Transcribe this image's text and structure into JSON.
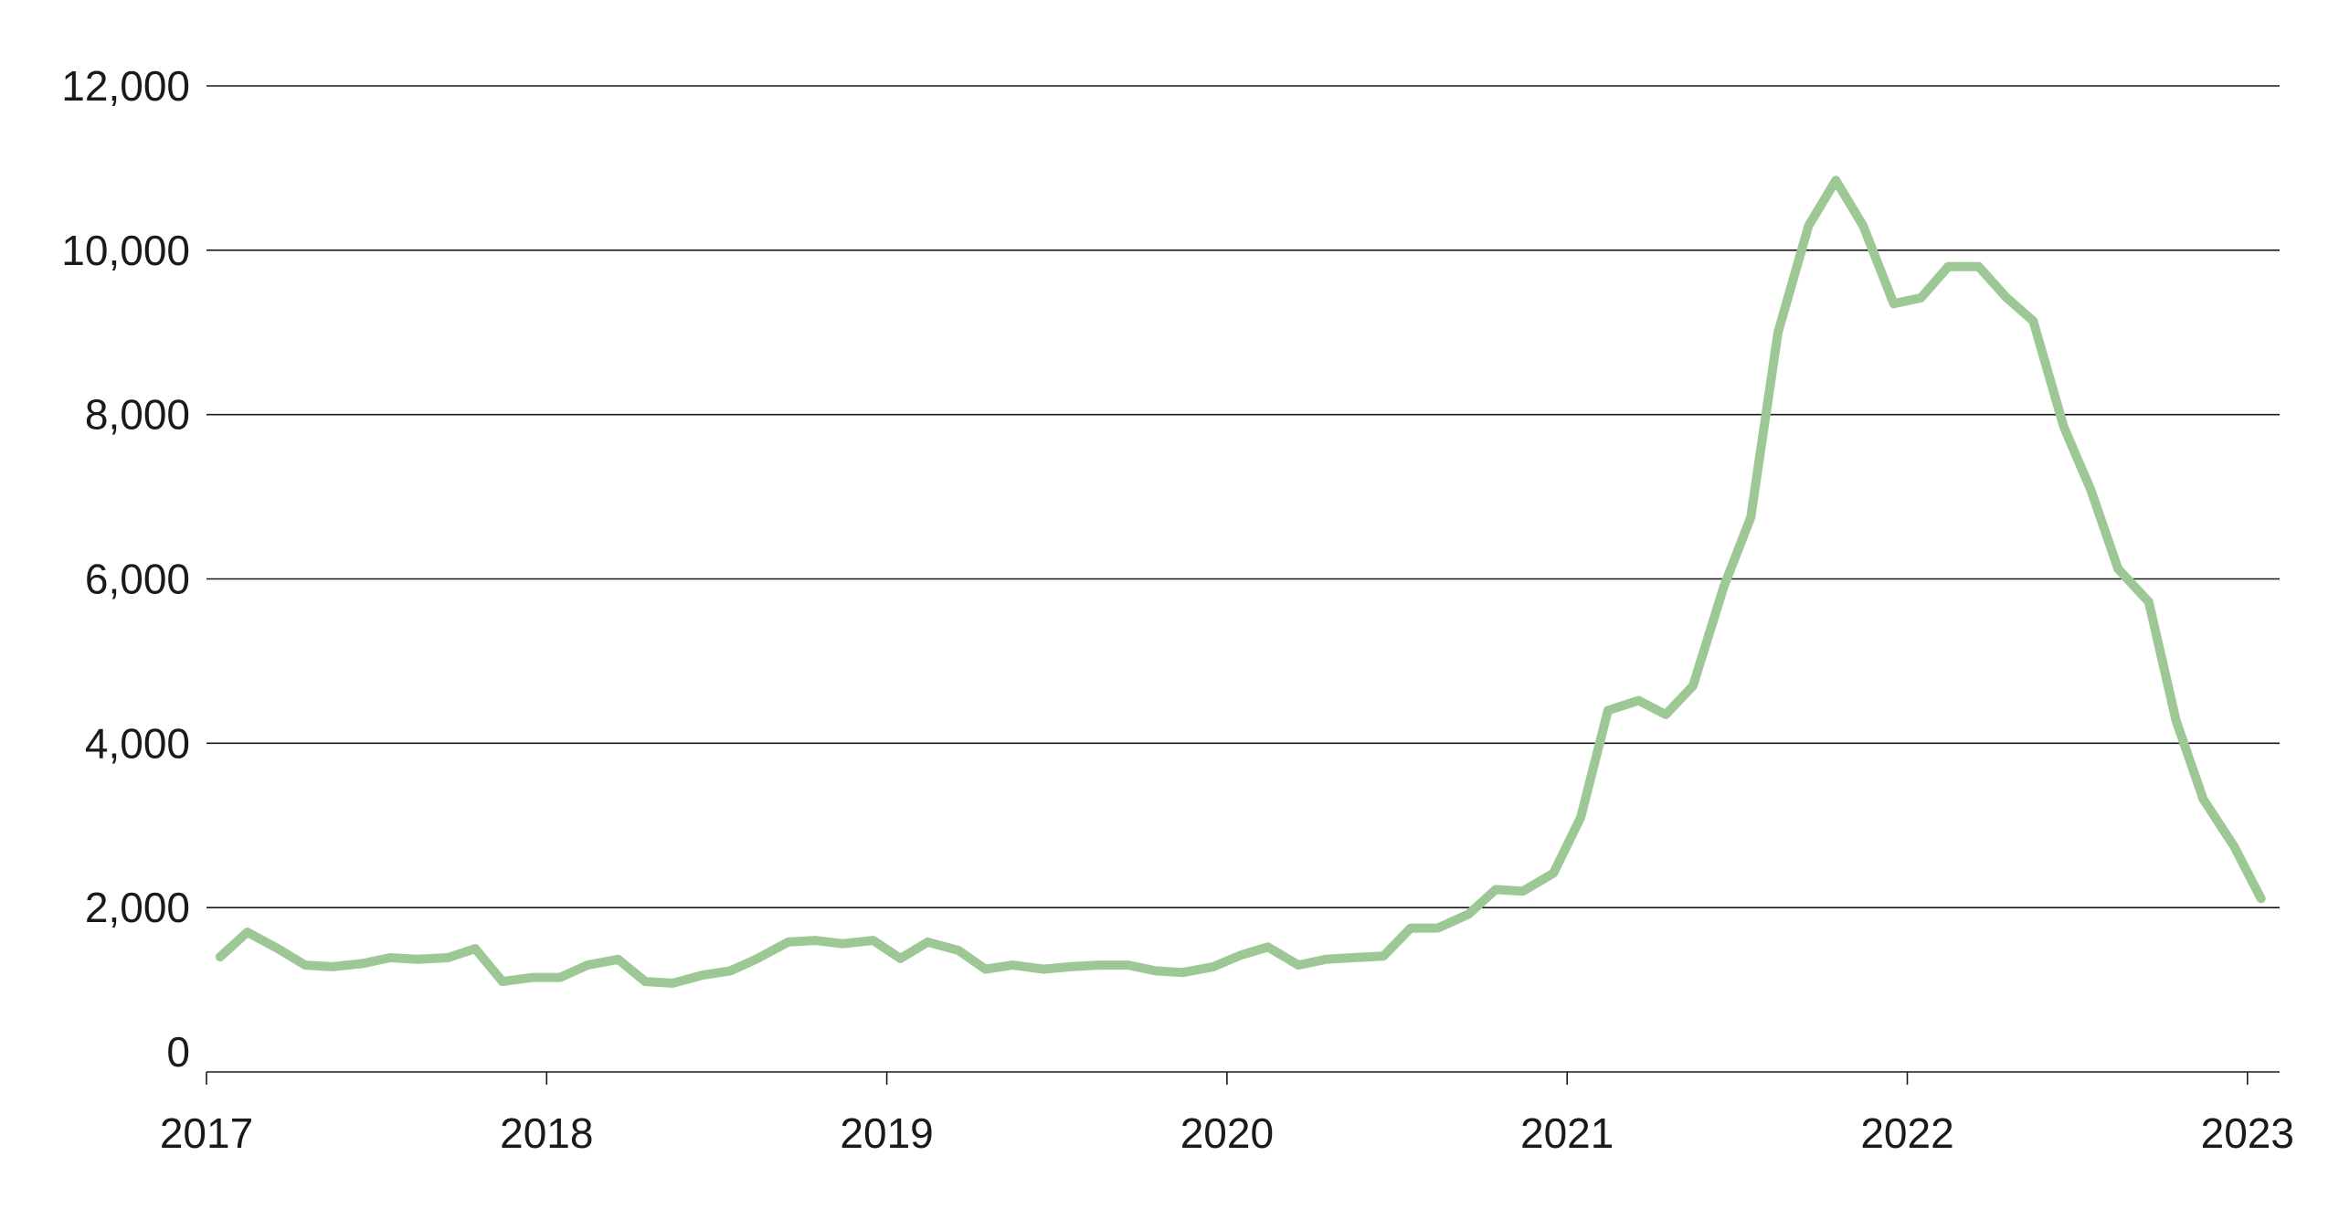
{
  "colors": {
    "series": "#9dc896",
    "grid": "#1a1a1a",
    "text": "#1a1a1a"
  },
  "chart_data": {
    "type": "line",
    "title": "",
    "xlabel": "",
    "ylabel": "",
    "grid": true,
    "legend": "none",
    "ylim": [
      0,
      12000
    ],
    "xlim": [
      2017.0,
      2023.0
    ],
    "y_ticks": [
      0,
      2000,
      4000,
      6000,
      8000,
      10000,
      12000
    ],
    "y_tick_labels": [
      "0",
      "2,000",
      "4,000",
      "6,000",
      "8,000",
      "10,000",
      "12,000"
    ],
    "x_ticks": [
      2017,
      2018,
      2019,
      2020,
      2021,
      2022,
      2023
    ],
    "x_tick_labels": [
      "2017",
      "2018",
      "2019",
      "2020",
      "2021",
      "2022",
      "2023"
    ],
    "series": [
      {
        "x": [
          2017.04,
          2017.12,
          2017.21,
          2017.29,
          2017.37,
          2017.46,
          2017.54,
          2017.62,
          2017.71,
          2017.79,
          2017.87,
          2017.96,
          2018.04,
          2018.12,
          2018.21,
          2018.29,
          2018.37,
          2018.46,
          2018.54,
          2018.62,
          2018.71,
          2018.79,
          2018.87,
          2018.96,
          2019.04,
          2019.12,
          2019.21,
          2019.29,
          2019.37,
          2019.46,
          2019.54,
          2019.62,
          2019.71,
          2019.79,
          2019.87,
          2019.96,
          2020.04,
          2020.12,
          2020.21,
          2020.29,
          2020.37,
          2020.46,
          2020.54,
          2020.62,
          2020.71,
          2020.79,
          2020.87,
          2020.96,
          2021.04,
          2021.12,
          2021.21,
          2021.29,
          2021.37,
          2021.46,
          2021.54,
          2021.62,
          2021.71,
          2021.79,
          2021.87,
          2021.96,
          2022.04,
          2022.12,
          2022.21,
          2022.29,
          2022.37,
          2022.46,
          2022.54,
          2022.62,
          2022.71,
          2022.79,
          2022.87,
          2022.96
        ],
        "y": [
          1400,
          1700,
          1500,
          1300,
          1280,
          1320,
          1390,
          1370,
          1390,
          1500,
          1100,
          1150,
          1150,
          1300,
          1370,
          1100,
          1080,
          1180,
          1230,
          1380,
          1580,
          1600,
          1560,
          1600,
          1380,
          1580,
          1480,
          1250,
          1300,
          1250,
          1280,
          1300,
          1300,
          1230,
          1210,
          1280,
          1420,
          1520,
          1300,
          1370,
          1390,
          1410,
          1750,
          1750,
          1920,
          2220,
          2200,
          2420,
          3100,
          4400,
          4520,
          4350,
          4700,
          5900,
          6750,
          9000,
          10300,
          10850,
          10300,
          9350,
          9420,
          9800,
          9800,
          9430,
          9140,
          7850,
          7080,
          6120,
          5720,
          4280,
          3320,
          2750
        ]
      }
    ],
    "series_end": {
      "x": 2023.04,
      "y": 2110
    }
  }
}
